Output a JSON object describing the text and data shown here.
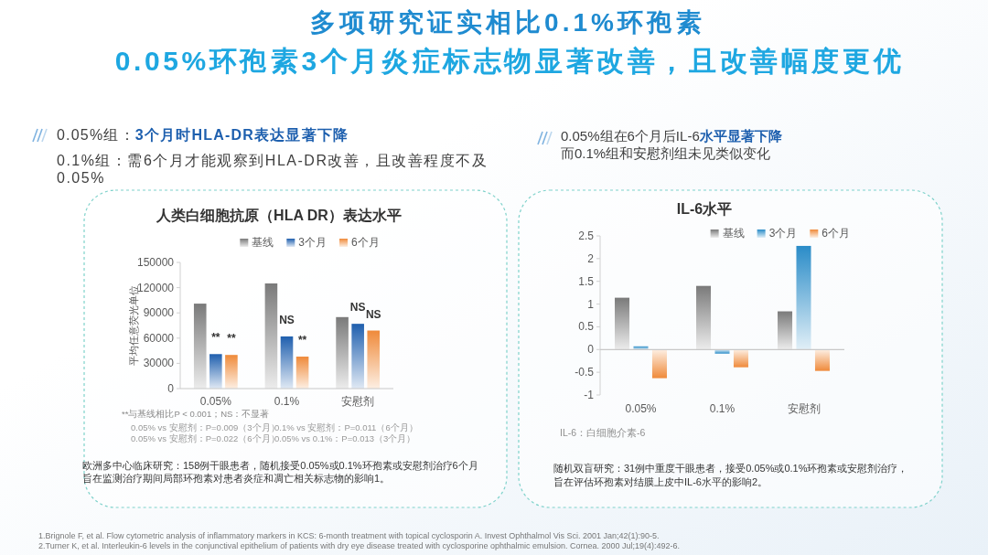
{
  "chart_data": [
    {
      "type": "bar",
      "title": "人类白细胞抗原（HLA DR）表达水平",
      "ylabel": "平均任意荧光单位",
      "categories": [
        "0.05%",
        "0.1%",
        "安慰剂"
      ],
      "series": [
        {
          "name": "基线",
          "color": "#7a7a7a",
          "values": [
            101000,
            125000,
            85000
          ]
        },
        {
          "name": "3个月",
          "color": "#1f5fae",
          "values": [
            41000,
            62000,
            77000
          ],
          "value_labels": [
            "**",
            "NS",
            "NS"
          ]
        },
        {
          "name": "6个月",
          "color": "#ef8a3a",
          "values": [
            40000,
            38000,
            69000
          ],
          "value_labels": [
            "**",
            "**",
            "NS"
          ]
        }
      ],
      "ylim": [
        0,
        150000
      ],
      "yticks": [
        0,
        30000,
        60000,
        90000,
        120000,
        150000
      ],
      "grid": false,
      "legend": "top",
      "annotations": [
        "多项研究证实相比0.1%环孢素",
        "0.05%环孢素3个月炎症标志物显著改善，且改善幅度更优",
        "0.05%组：",
        "3个月时HLA-DR表达显著下降",
        "0.1%组：需6个月才能观察到HLA-DR改善，且改善程度不及0.05%",
        "**与基线相比P < 0.001；NS：不显著",
        "0.05% vs 安慰剂：P=0.009（3个月）",
        "0.1% vs 安慰剂：P=0.011（6个月）",
        "0.05% vs 安慰剂：P=0.022（6个月）",
        "0.05% vs 0.1%：P=0.013（3个月）",
        "欧洲多中心临床研究：158例干眼患者，随机接受0.05%或0.1%环孢素或安慰剂治疗6个月旨在监测治疗期间局部环孢素对患者炎症和凋亡相关标志物的影响1。",
        "1.Brignole F, et al. Flow cytometric analysis of inflammatory markers in KCS: 6-month treatment with topical cyclosporin A. Invest Ophthalmol Vis Sci. 2001 Jan;42(1):90-5."
      ]
    },
    {
      "type": "bar",
      "title": "IL-6水平",
      "categories": [
        "0.05%",
        "0.1%",
        "安慰剂"
      ],
      "series": [
        {
          "name": "基线",
          "color": "#7a7a7a",
          "values": [
            1.14,
            1.4,
            0.84
          ]
        },
        {
          "name": "3个月",
          "color": "#2a8cc8",
          "values": [
            0.07,
            -0.09,
            2.28
          ]
        },
        {
          "name": "6个月",
          "color": "#ef8a3a",
          "values": [
            -0.63,
            -0.39,
            -0.47
          ]
        }
      ],
      "ylim": [
        -1,
        2.5
      ],
      "yticks": [
        -1,
        -0.5,
        0,
        0.5,
        1,
        1.5,
        2,
        2.5
      ],
      "grid": false,
      "legend": "top right",
      "ref_lines": [
        {
          "axis": "y",
          "value": 0,
          "color": "#c8c8c8"
        }
      ],
      "annotations": [
        "0.05%组在6个月后IL-6",
        "水平显著下降",
        "而0.1%组和安慰剂组未见类似变化",
        "IL-6：白细胞介素-6",
        "随机双盲研究：31例中重度干眼患者，接受0.05%或0.1%环孢素或安慰剂治疗，旨在评估环孢素对结膜上皮中IL-6水平的影响2。",
        "2.Turner K, et al. Interleukin-6 levels in the conjunctival epithelium of patients with dry eye disease treated with cyclosporine ophthalmic emulsion. Cornea. 2000 Jul;19(4):492-6."
      ]
    }
  ]
}
